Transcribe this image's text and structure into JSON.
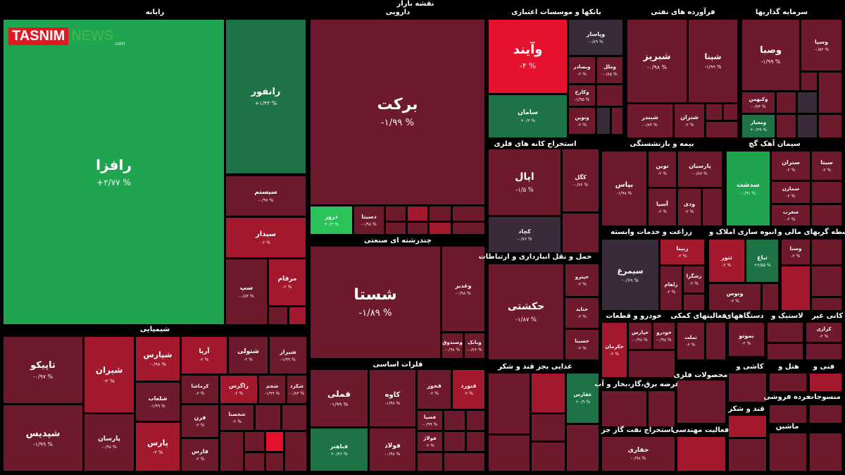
{
  "header": {
    "title": "نقشه بازار",
    "logo_main": "TASNIM",
    "logo_news": "NEWS",
    "logo_domain": ".com"
  },
  "sectors": [
    {
      "name": "رایانه",
      "tiles": [
        {
          "name": "رافزا",
          "change": "+۲/۷۷ %"
        },
        {
          "name": "رانفور",
          "change": "+۱/۴۳ %"
        },
        {
          "name": "سیستم",
          "change": "-۰/۹۷ %"
        },
        {
          "name": "سیدار",
          "change": "-۲ %"
        },
        {
          "name": "سپ",
          "change": "-۰/۸۴ %"
        },
        {
          "name": "مرقام",
          "change": "-۲ %"
        }
      ]
    },
    {
      "name": "دارویی",
      "tiles": [
        {
          "name": "برکت",
          "change": "-۱/۹۹ %"
        },
        {
          "name": "دروز",
          "change": "+۰/۳ %"
        },
        {
          "name": "دسینا",
          "change": "-۰/۹۸ %"
        }
      ]
    },
    {
      "name": "چندرشته ای صنعتی",
      "tiles": [
        {
          "name": "شستا",
          "change": "-۱/۸۹ %"
        },
        {
          "name": "وغدیر",
          "change": "-۰/۹۸ %"
        },
        {
          "name": "وصندوق",
          "change": "-۰/۹۸ %"
        },
        {
          "name": "وبانک",
          "change": "-۰/۷۶ %"
        }
      ]
    },
    {
      "name": "شیمیایی",
      "tiles": [
        {
          "name": "تاپیکو",
          "change": "-۰/۹۷ %"
        },
        {
          "name": "شپدیس",
          "change": "-۱/۹۹ %"
        },
        {
          "name": "شیران",
          "change": "-۲ %"
        },
        {
          "name": "پارسان",
          "change": "-۰/۹۸ %"
        },
        {
          "name": "شپارس",
          "change": "-۰/۹۸ %"
        },
        {
          "name": "آریا",
          "change": "-۲ %"
        },
        {
          "name": "شتولی",
          "change": "-۲ %"
        },
        {
          "name": "شیراز",
          "change": "-۱/۹۹ %"
        },
        {
          "name": "شلعاب",
          "change": "-۱/۹۹ %"
        },
        {
          "name": "کرماشا",
          "change": "-۲ %"
        },
        {
          "name": "زاگرس",
          "change": "-۲ %"
        },
        {
          "name": "شجم",
          "change": "-۱/۹۹ %"
        },
        {
          "name": "شکرد",
          "change": "-۰/۸۳ %"
        },
        {
          "name": "پارس",
          "change": "-۲ %"
        },
        {
          "name": "قرن",
          "change": "-۲ %"
        },
        {
          "name": "فارس",
          "change": "-۲ %"
        },
        {
          "name": "شخصنا",
          "change": "-۲ %"
        }
      ]
    },
    {
      "name": "فلزات اساسی",
      "tiles": [
        {
          "name": "فملی",
          "change": "-۱/۹۹ %"
        },
        {
          "name": "کاوه",
          "change": "-۱/۹۸ %"
        },
        {
          "name": "فولاد",
          "change": "-۰/۹۸ %"
        },
        {
          "name": "فخوز",
          "change": "-۲ %"
        },
        {
          "name": "فنورد",
          "change": "-۲ %"
        },
        {
          "name": "فسپا",
          "change": "-۰/۹۹ %"
        },
        {
          "name": "فولاژ",
          "change": "-۲ %"
        },
        {
          "name": "فباهنر",
          "change": "+۰/۳۶ %"
        }
      ]
    },
    {
      "name": "بانکها و موسسات اعتباری",
      "tiles": [
        {
          "name": "وآیند",
          "change": "-۴ %"
        },
        {
          "name": "سامان",
          "change": "+۰/۳ %"
        },
        {
          "name": "وپاسار",
          "change": "-۰/۸۹ %"
        },
        {
          "name": "وبصادر",
          "change": "-۲ %"
        },
        {
          "name": "وملل",
          "change": "-۰/۸۵ %"
        },
        {
          "name": "وکارخ",
          "change": "-۱/۹۵ %"
        },
        {
          "name": "ونوین",
          "change": "-۲ %"
        }
      ]
    },
    {
      "name": "فرآورده های نفتی",
      "tiles": [
        {
          "name": "شبریز",
          "change": "-۰/۹۸ %"
        },
        {
          "name": "شپنا",
          "change": "-۱/۹۹ %"
        },
        {
          "name": "شبندر",
          "change": "-۰/۸۴ %"
        },
        {
          "name": "شتران",
          "change": "-۲ %"
        }
      ]
    },
    {
      "name": "سرمایه گذاریها",
      "tiles": [
        {
          "name": "وصبا",
          "change": "-۱/۹۹ %"
        },
        {
          "name": "وسپا",
          "change": "-۰/۵۲ %"
        },
        {
          "name": "وکبهمن",
          "change": "-۰/۷۳ %"
        },
        {
          "name": "ومعیار",
          "change": "+۰/۳۹ %"
        }
      ]
    },
    {
      "name": "استخراج کانه های فلزی",
      "tiles": [
        {
          "name": "اپال",
          "change": "-۱/۵ %"
        },
        {
          "name": "کگل",
          "change": "-۰/۷۶ %"
        },
        {
          "name": "کچاد",
          "change": "-۰/۷۶ %"
        }
      ]
    },
    {
      "name": "حمل و نقل انبارداری و ارتباطات",
      "tiles": [
        {
          "name": "حکشتی",
          "change": "-۱/۸۷ %"
        },
        {
          "name": "حپترو",
          "change": "-۲ %"
        },
        {
          "name": "حتاید",
          "change": "-۲ %"
        },
        {
          "name": "حسینا",
          "change": "-۲ %"
        }
      ]
    },
    {
      "name": "بیمه و بازنشستگی",
      "tiles": [
        {
          "name": "بپاس",
          "change": "-۱/۹۸ %"
        },
        {
          "name": "نوین",
          "change": "-۲ %"
        },
        {
          "name": "پارسیان",
          "change": "-۰/۸۷ %"
        },
        {
          "name": "آسیا",
          "change": "-۲ %"
        },
        {
          "name": "ودی",
          "change": "-۲ %"
        }
      ]
    },
    {
      "name": "سیمان آهک گچ",
      "tiles": [
        {
          "name": "سدشت",
          "change": "-۰/۹۱ %"
        },
        {
          "name": "ستران",
          "change": "-۲ %"
        },
        {
          "name": "سیتا",
          "change": "-۲ %"
        },
        {
          "name": "سمازن",
          "change": "-۲ %"
        },
        {
          "name": "سغرب",
          "change": "-۲ %"
        }
      ]
    },
    {
      "name": "زراعت و خدمات وابسته",
      "tiles": [
        {
          "name": "سیمرغ",
          "change": "-۰/۶۹ %"
        },
        {
          "name": "زبینا",
          "change": "-۲ %"
        },
        {
          "name": "زاهام",
          "change": "-۲ %"
        },
        {
          "name": "زشگزا",
          "change": "-۲ %"
        }
      ]
    },
    {
      "name": "انبوه سازی املاک و",
      "tiles": [
        {
          "name": "ثنور",
          "change": "-۲ %"
        },
        {
          "name": "ثباغ",
          "change": "+۲/۵۵ %"
        },
        {
          "name": "وتوس",
          "change": "-۲ %"
        }
      ]
    },
    {
      "name": "واسطه گریهای مالی و",
      "tiles": [
        {
          "name": "وسنا",
          "change": "-۲ %"
        }
      ]
    },
    {
      "name": "خودرو و قطعات",
      "tiles": [
        {
          "name": "خکرمان",
          "change": "-۲ %"
        },
        {
          "name": "خپارس",
          "change": "-۰/۹۸ %"
        },
        {
          "name": "خودرو",
          "change": "-۰/۹۸ %"
        }
      ]
    },
    {
      "name": "فعالیتهای کمکی",
      "tiles": [
        {
          "name": "تملت",
          "change": "-۲ %"
        }
      ]
    },
    {
      "name": "دستگاههای",
      "tiles": [
        {
          "name": "بموتو",
          "change": "-۲ %"
        }
      ]
    },
    {
      "name": "لاستیک و",
      "tiles": []
    },
    {
      "name": "کانی غیر",
      "tiles": [
        {
          "name": "کرازی",
          "change": "-۲ %"
        }
      ]
    },
    {
      "name": "غذایی بجز قند و شکر",
      "tiles": [
        {
          "name": "غفارس",
          "change": "+۰/۹ %"
        }
      ]
    },
    {
      "name": "عرضه برق،گاز،بخار و آب",
      "tiles": []
    },
    {
      "name": "استخراج نفت گاز جز",
      "tiles": [
        {
          "name": "حفاری",
          "change": "-۰/۹۸ %"
        }
      ]
    },
    {
      "name": "محصولات فلزی",
      "tiles": []
    },
    {
      "name": "فعالیت مهندسی",
      "tiles": []
    },
    {
      "name": "کاشی و",
      "tiles": []
    },
    {
      "name": "هتل و",
      "tiles": []
    },
    {
      "name": "فنی و",
      "tiles": []
    },
    {
      "name": "قند و شکر",
      "tiles": []
    },
    {
      "name": "خرده فروشی",
      "tiles": []
    },
    {
      "name": "منسوجات",
      "tiles": []
    },
    {
      "name": "ماشین",
      "tiles": []
    }
  ]
}
